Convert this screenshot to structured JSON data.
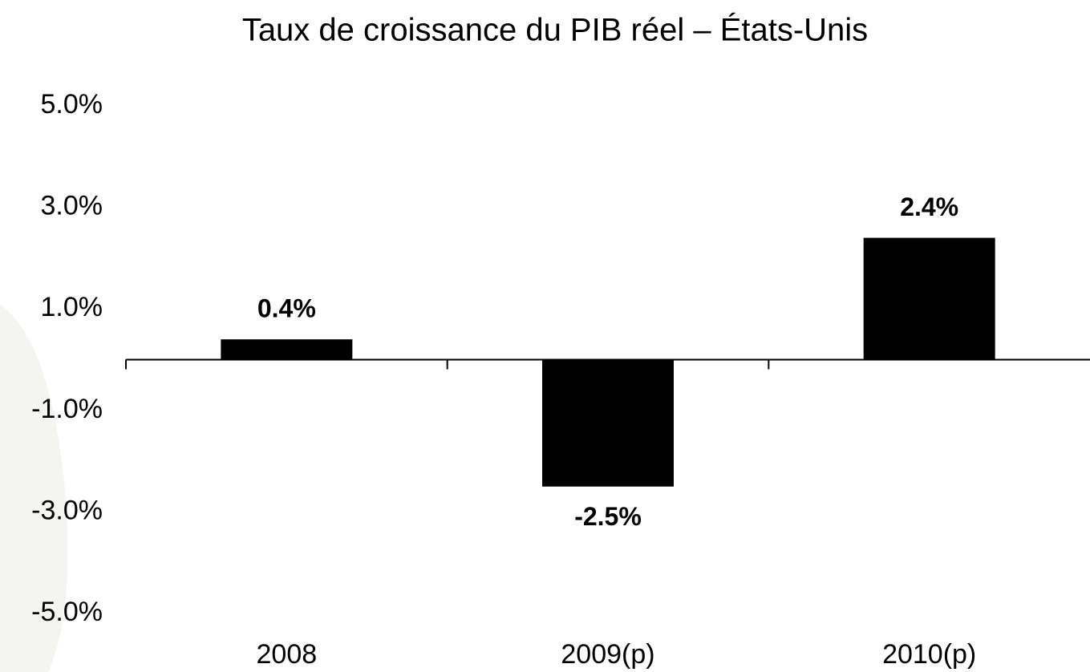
{
  "chart_data": {
    "type": "bar",
    "title": "Taux de croissance du PIB réel – États-Unis",
    "categories": [
      "2008",
      "2009(p)",
      "2010(p)"
    ],
    "values": [
      0.4,
      -2.5,
      2.4
    ],
    "value_labels": [
      "0.4%",
      "-2.5%",
      "2.4%"
    ],
    "color": "#000000",
    "ylim": [
      -5,
      5
    ],
    "yticks": [
      {
        "value": 5,
        "label": "5.0%"
      },
      {
        "value": 3,
        "label": "3.0%"
      },
      {
        "value": 1,
        "label": "1.0%"
      },
      {
        "value": -1,
        "label": "-1.0%"
      },
      {
        "value": -3,
        "label": "-3.0%"
      },
      {
        "value": -5,
        "label": "-5.0%"
      }
    ],
    "grid": false
  }
}
